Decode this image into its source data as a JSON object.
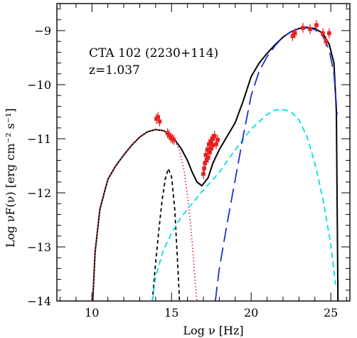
{
  "chart_data": {
    "type": "line",
    "annotation": {
      "line1": "CTA 102 (2230+114)",
      "line2": "z=1.037"
    },
    "xlabel": "Log ν [Hz]",
    "ylabel": "Log νF(ν) [erg cm⁻² s⁻¹]",
    "xlim": [
      7.8,
      26.2
    ],
    "ylim": [
      -14,
      -8.5
    ],
    "x_ticks": [
      10,
      15,
      20,
      25
    ],
    "y_ticks": [
      -14,
      -13,
      -12,
      -11,
      -10,
      -9
    ],
    "x_tick_labels": [
      "10",
      "15",
      "20",
      "25"
    ],
    "y_tick_labels": [
      "−14",
      "−13",
      "−12",
      "−11",
      "−10",
      "−9"
    ],
    "grid": false,
    "series": [
      {
        "style": "solid",
        "color": "#000000",
        "x": [
          10.05,
          10.2,
          10.5,
          11.0,
          11.5,
          12.0,
          12.5,
          13.0,
          13.5,
          14.0,
          14.5,
          14.9,
          15.2,
          15.6,
          16.0,
          16.3,
          16.6,
          16.9,
          17.3,
          17.6,
          18.0,
          18.5,
          19.0,
          19.5,
          20.0,
          20.5,
          21.0,
          21.5,
          22.0,
          22.5,
          23.0,
          23.5,
          24.0,
          24.5,
          24.9,
          25.2,
          25.35,
          25.45
        ],
        "y": [
          -14.0,
          -13.1,
          -12.3,
          -11.75,
          -11.5,
          -11.3,
          -11.12,
          -10.97,
          -10.87,
          -10.83,
          -10.85,
          -10.92,
          -11.02,
          -11.18,
          -11.4,
          -11.62,
          -11.8,
          -11.87,
          -11.72,
          -11.45,
          -11.2,
          -10.95,
          -10.7,
          -10.3,
          -9.85,
          -9.6,
          -9.42,
          -9.26,
          -9.12,
          -9.02,
          -8.96,
          -8.94,
          -8.96,
          -9.05,
          -9.25,
          -9.6,
          -10.5,
          -14.0
        ]
      },
      {
        "style": "dotted",
        "color": "#e53030",
        "x": [
          10.05,
          10.2,
          10.5,
          11.0,
          11.5,
          12.0,
          12.5,
          13.0,
          13.5,
          14.0,
          14.5,
          14.9,
          15.2,
          15.5,
          15.8,
          16.0,
          16.2,
          16.4,
          16.5,
          16.6
        ],
        "y": [
          -14.0,
          -13.1,
          -12.3,
          -11.75,
          -11.5,
          -11.3,
          -11.12,
          -10.97,
          -10.87,
          -10.83,
          -10.85,
          -10.92,
          -11.03,
          -11.22,
          -11.6,
          -12.05,
          -12.6,
          -13.3,
          -13.7,
          -14.0
        ]
      },
      {
        "style": "short-dashed",
        "color": "#000000",
        "x": [
          13.8,
          14.0,
          14.2,
          14.4,
          14.6,
          14.8,
          15.0,
          15.2,
          15.4,
          15.5
        ],
        "y": [
          -14.0,
          -13.3,
          -12.7,
          -12.15,
          -11.75,
          -11.55,
          -11.7,
          -12.3,
          -13.4,
          -14.0
        ]
      },
      {
        "style": "dashed",
        "color": "#00e0e0",
        "x": [
          13.8,
          14.0,
          14.5,
          15.0,
          15.5,
          16.0,
          17.0,
          18.0,
          19.0,
          20.0,
          21.0,
          21.5,
          22.0,
          22.5,
          23.0,
          23.5,
          24.0,
          24.5,
          25.0,
          25.3
        ],
        "y": [
          -14.0,
          -13.55,
          -13.05,
          -12.75,
          -12.5,
          -12.3,
          -11.95,
          -11.62,
          -11.2,
          -10.82,
          -10.55,
          -10.47,
          -10.46,
          -10.5,
          -10.65,
          -10.95,
          -11.45,
          -12.1,
          -12.95,
          -13.7
        ]
      },
      {
        "style": "long-dashed",
        "color": "#1f2fd0",
        "x": [
          17.75,
          18.0,
          18.5,
          19.0,
          19.5,
          20.0,
          20.5,
          21.0,
          21.5,
          22.0,
          22.5,
          23.0,
          23.5,
          24.0,
          24.5,
          24.9,
          25.2,
          25.4
        ],
        "y": [
          -14.0,
          -13.4,
          -12.55,
          -11.75,
          -10.95,
          -10.2,
          -9.75,
          -9.48,
          -9.28,
          -9.12,
          -9.02,
          -8.97,
          -8.95,
          -8.98,
          -9.1,
          -9.35,
          -9.8,
          -10.55
        ]
      }
    ],
    "observed_points": [
      {
        "x": 14.05,
        "y": -10.63
      },
      {
        "x": 14.15,
        "y": -10.6
      },
      {
        "x": 14.25,
        "y": -10.68
      },
      {
        "x": 14.75,
        "y": -10.9
      },
      {
        "x": 14.85,
        "y": -10.93
      },
      {
        "x": 14.95,
        "y": -10.98
      },
      {
        "x": 15.05,
        "y": -11.0
      },
      {
        "x": 15.15,
        "y": -11.02
      },
      {
        "x": 17.0,
        "y": -11.65
      },
      {
        "x": 17.05,
        "y": -11.55
      },
      {
        "x": 17.1,
        "y": -11.45
      },
      {
        "x": 17.15,
        "y": -11.3
      },
      {
        "x": 17.2,
        "y": -11.4
      },
      {
        "x": 17.25,
        "y": -11.2
      },
      {
        "x": 17.3,
        "y": -11.35
      },
      {
        "x": 17.35,
        "y": -11.1
      },
      {
        "x": 17.4,
        "y": -11.25
      },
      {
        "x": 17.45,
        "y": -11.05
      },
      {
        "x": 17.5,
        "y": -11.18
      },
      {
        "x": 17.55,
        "y": -11.0
      },
      {
        "x": 17.6,
        "y": -11.12
      },
      {
        "x": 17.7,
        "y": -10.95
      },
      {
        "x": 17.8,
        "y": -11.1
      },
      {
        "x": 17.9,
        "y": -11.02
      },
      {
        "x": 22.6,
        "y": -9.1
      },
      {
        "x": 22.75,
        "y": -9.05
      },
      {
        "x": 23.25,
        "y": -8.95
      },
      {
        "x": 23.7,
        "y": -8.97
      },
      {
        "x": 24.1,
        "y": -8.9
      },
      {
        "x": 24.5,
        "y": -9.05
      },
      {
        "x": 24.7,
        "y": -9.2
      },
      {
        "x": 24.9,
        "y": -9.05
      }
    ],
    "point_color": "#e82020"
  }
}
